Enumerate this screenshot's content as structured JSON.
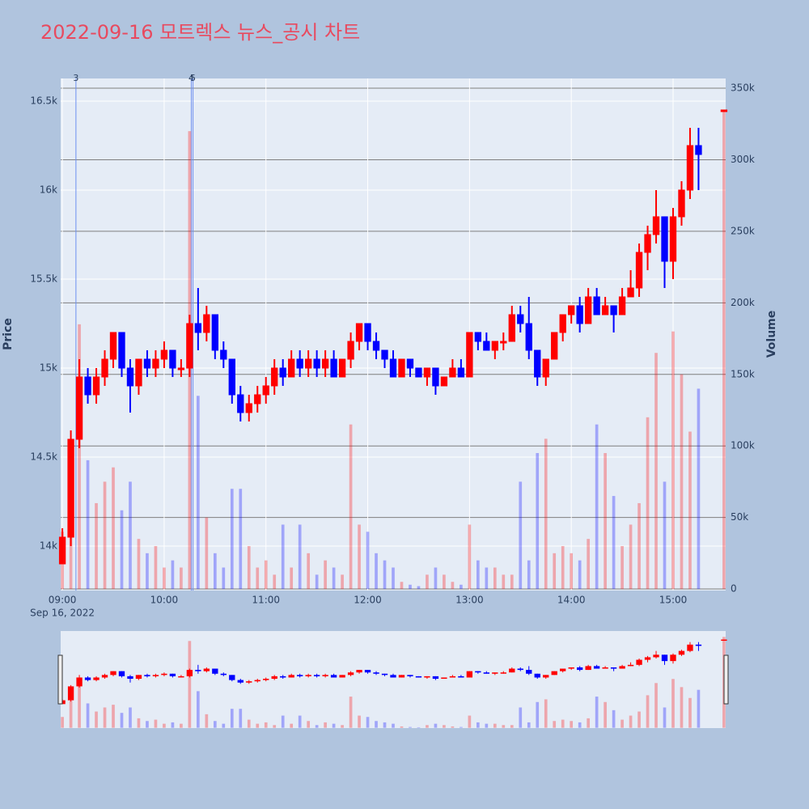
{
  "chart_data": {
    "type": "candlestick",
    "title": "2022-09-16 모트렉스 뉴스_공시 차트",
    "x": [
      "09:00",
      "09:05",
      "09:10",
      "09:15",
      "09:20",
      "09:25",
      "09:30",
      "09:35",
      "09:40",
      "09:45",
      "09:50",
      "09:55",
      "10:00",
      "10:05",
      "10:10",
      "10:15",
      "10:20",
      "10:25",
      "10:30",
      "10:35",
      "10:40",
      "10:45",
      "10:50",
      "10:55",
      "11:00",
      "11:05",
      "11:10",
      "11:15",
      "11:20",
      "11:25",
      "11:30",
      "11:35",
      "11:40",
      "11:45",
      "11:50",
      "11:55",
      "12:00",
      "12:05",
      "12:10",
      "12:15",
      "12:20",
      "12:25",
      "12:30",
      "12:35",
      "12:40",
      "12:45",
      "12:50",
      "12:55",
      "13:00",
      "13:05",
      "13:10",
      "13:15",
      "13:20",
      "13:25",
      "13:30",
      "13:35",
      "13:40",
      "13:45",
      "13:50",
      "13:55",
      "14:00",
      "14:05",
      "14:10",
      "14:15",
      "14:20",
      "14:25",
      "14:30",
      "14:35",
      "14:40",
      "14:45",
      "14:50",
      "14:55",
      "15:00",
      "15:05",
      "15:10",
      "15:15",
      "15:30"
    ],
    "open": [
      13900,
      14050,
      14600,
      14950,
      14850,
      14950,
      15050,
      15200,
      15000,
      14900,
      15050,
      15000,
      15050,
      15100,
      15000,
      15000,
      15250,
      15200,
      15300,
      15100,
      15050,
      14850,
      14750,
      14800,
      14850,
      14900,
      15000,
      14950,
      15050,
      15000,
      15050,
      15000,
      15050,
      14950,
      15050,
      15150,
      15250,
      15150,
      15100,
      15050,
      14950,
      15050,
      15000,
      14950,
      15000,
      14900,
      14950,
      15000,
      14950,
      15200,
      15150,
      15100,
      15150,
      15150,
      15300,
      15250,
      15100,
      14950,
      15050,
      15200,
      15300,
      15350,
      15250,
      15400,
      15300,
      15350,
      15300,
      15400,
      15450,
      15650,
      15750,
      15850,
      15600,
      15850,
      16000,
      16250,
      16450
    ],
    "high": [
      14100,
      14650,
      15050,
      15000,
      15000,
      15100,
      15200,
      15200,
      15050,
      15050,
      15100,
      15100,
      15150,
      15100,
      15050,
      15300,
      15450,
      15350,
      15300,
      15150,
      15050,
      14900,
      14850,
      14900,
      14950,
      15050,
      15050,
      15100,
      15100,
      15100,
      15100,
      15100,
      15100,
      15050,
      15200,
      15250,
      15250,
      15200,
      15100,
      15100,
      15050,
      15050,
      15000,
      15000,
      15000,
      14950,
      15050,
      15050,
      15200,
      15200,
      15200,
      15150,
      15200,
      15350,
      15350,
      15400,
      15100,
      15050,
      15200,
      15300,
      15350,
      15400,
      15450,
      15450,
      15400,
      15350,
      15450,
      15550,
      15700,
      15800,
      16000,
      15850,
      15900,
      16050,
      16350,
      16350,
      16450
    ],
    "low": [
      13900,
      14000,
      14550,
      14800,
      14800,
      14900,
      15000,
      14950,
      14750,
      14850,
      14950,
      14950,
      15000,
      14950,
      14950,
      14950,
      15100,
      15150,
      15050,
      15000,
      14800,
      14700,
      14700,
      14750,
      14800,
      14850,
      14900,
      14950,
      14950,
      14950,
      14950,
      14950,
      14950,
      14950,
      15000,
      15100,
      15100,
      15050,
      15000,
      14950,
      14950,
      14950,
      14950,
      14900,
      14850,
      14900,
      14950,
      14950,
      14950,
      15100,
      15100,
      15050,
      15100,
      15150,
      15200,
      15050,
      14900,
      14900,
      15050,
      15150,
      15250,
      15200,
      15250,
      15300,
      15300,
      15200,
      15300,
      15400,
      15400,
      15550,
      15700,
      15450,
      15500,
      15800,
      15950,
      16000,
      16450
    ],
    "close": [
      14050,
      14600,
      14950,
      14850,
      14950,
      15050,
      15200,
      15000,
      14900,
      15050,
      15000,
      15050,
      15100,
      15000,
      15000,
      15250,
      15200,
      15300,
      15100,
      15050,
      14850,
      14750,
      14800,
      14850,
      14900,
      15000,
      14950,
      15050,
      15000,
      15050,
      15000,
      15050,
      14950,
      15050,
      15150,
      15250,
      15150,
      15100,
      15050,
      14950,
      15050,
      15000,
      14950,
      15000,
      14900,
      14950,
      15000,
      14950,
      15200,
      15150,
      15100,
      15150,
      15150,
      15300,
      15250,
      15100,
      14950,
      15050,
      15200,
      15300,
      15350,
      15250,
      15400,
      15300,
      15350,
      15300,
      15400,
      15450,
      15650,
      15750,
      15850,
      15600,
      15850,
      16000,
      16250,
      16200,
      16450
    ],
    "volume": [
      40000,
      100000,
      185000,
      90000,
      60000,
      75000,
      85000,
      55000,
      75000,
      35000,
      25000,
      30000,
      15000,
      20000,
      15000,
      320000,
      135000,
      50000,
      25000,
      15000,
      70000,
      70000,
      30000,
      15000,
      20000,
      10000,
      45000,
      15000,
      45000,
      25000,
      10000,
      20000,
      15000,
      10000,
      115000,
      45000,
      40000,
      25000,
      20000,
      15000,
      5000,
      3000,
      2000,
      10000,
      15000,
      10000,
      5000,
      3000,
      45000,
      20000,
      15000,
      15000,
      10000,
      10000,
      75000,
      20000,
      95000,
      105000,
      25000,
      30000,
      25000,
      20000,
      35000,
      115000,
      95000,
      65000,
      30000,
      45000,
      60000,
      120000,
      165000,
      75000,
      180000,
      150000,
      110000,
      140000,
      335000
    ],
    "increasing_color": "#ff0000",
    "decreasing_color": "#0000ff",
    "xlim": [
      "08:59",
      "15:31"
    ],
    "xticks": [
      "09:00",
      "10:00",
      "11:00",
      "12:00",
      "13:00",
      "14:00",
      "15:00"
    ],
    "x_date_label": "Sep 16, 2022",
    "ylabel": "Price",
    "y2label": "Volume",
    "ylim": [
      13750,
      16627
    ],
    "yticks": [
      {
        "value": 14000,
        "label": "14k"
      },
      {
        "value": 14500,
        "label": "14.5k"
      },
      {
        "value": 15000,
        "label": "15k"
      },
      {
        "value": 15500,
        "label": "15.5k"
      },
      {
        "value": 16000,
        "label": "16k"
      },
      {
        "value": 16500,
        "label": "16.5k"
      }
    ],
    "y2lim": [
      -1100,
      356800
    ],
    "y2ticks": [
      0,
      {
        "value": 50000,
        "label": "50k"
      },
      {
        "value": 100000,
        "label": "100k"
      },
      {
        "value": 150000,
        "label": "150k"
      },
      {
        "value": 200000,
        "label": "200k"
      },
      {
        "value": 250000,
        "label": "250k"
      },
      {
        "value": 300000,
        "label": "300k"
      },
      {
        "value": 350000,
        "label": "350k"
      }
    ],
    "annotations": [
      {
        "x": "09:08",
        "label": "3"
      },
      {
        "x": "10:16",
        "label": "4"
      },
      {
        "x": "10:17",
        "label": "5"
      }
    ],
    "rangeslider": true
  }
}
